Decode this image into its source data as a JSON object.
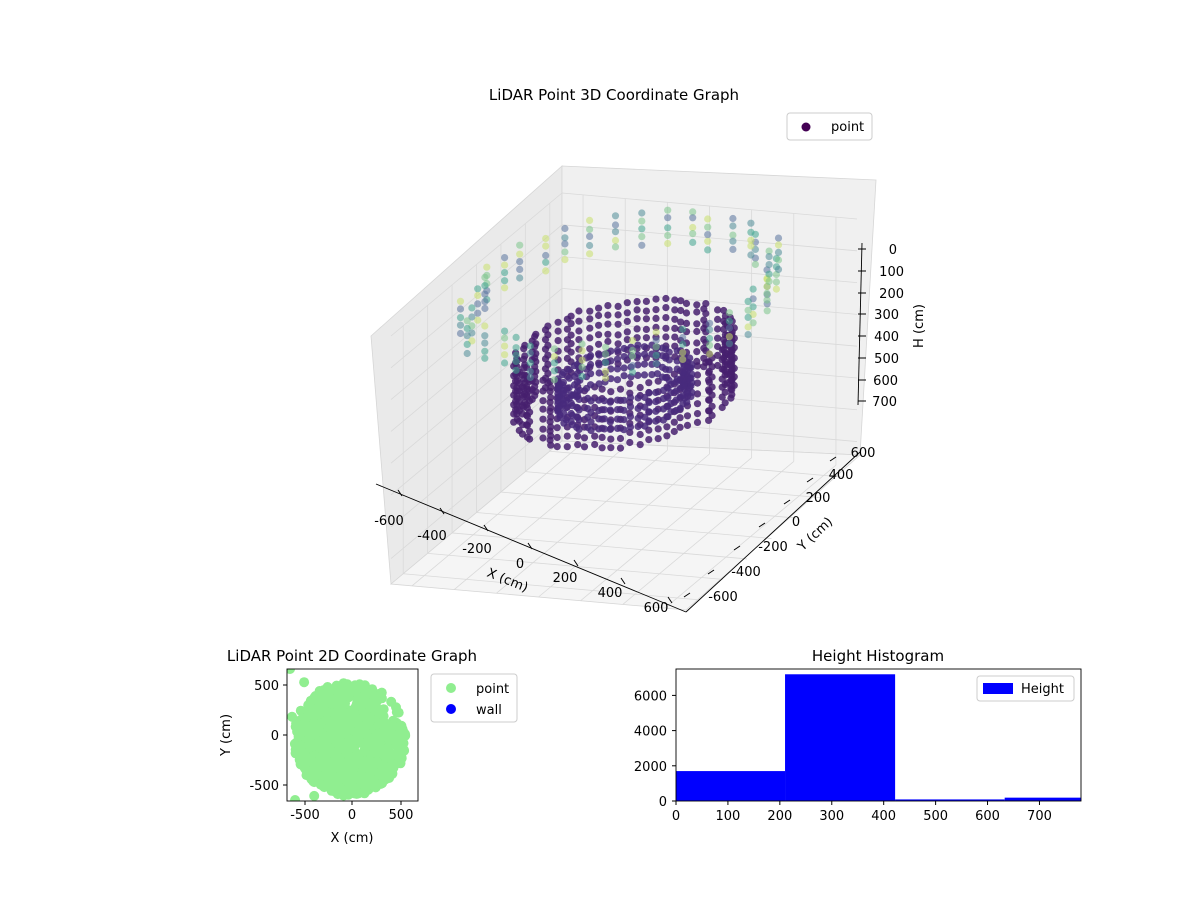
{
  "chart_data": [
    {
      "type": "scatter",
      "projection": "3d",
      "title": "LiDAR Point 3D Coordinate Graph",
      "xlabel": "X (cm)",
      "ylabel": "Y (cm)",
      "zlabel": "H (cm)",
      "x_ticks": [
        "-600",
        "-400",
        "-200",
        "0",
        "200",
        "400",
        "600"
      ],
      "y_ticks": [
        "-600",
        "-400",
        "-200",
        "0",
        "200",
        "400",
        "600"
      ],
      "z_ticks": [
        "0",
        "100",
        "200",
        "300",
        "400",
        "500",
        "600",
        "700"
      ],
      "xlim": [
        -700,
        700
      ],
      "ylim": [
        -700,
        700
      ],
      "zlim": [
        0,
        780
      ],
      "z_axis_inverted": true,
      "colormap": "viridis",
      "legend": {
        "entries": [
          {
            "label": "point",
            "color": "#440154"
          }
        ],
        "placement": "upper-right"
      },
      "grid": true,
      "structures": [
        {
          "name": "ring",
          "radius": 440,
          "h_range": [
            210,
            410
          ],
          "h_step": 30,
          "count": 70,
          "color": "#46206f"
        },
        {
          "name": "inner-disk",
          "radius": 270,
          "h_range": [
            300,
            390
          ],
          "h_step": 30,
          "count": 60,
          "color": "#482a7c"
        },
        {
          "name": "outer-wall",
          "radius": 650,
          "h_range": [
            0,
            120
          ],
          "h_step": 25,
          "count": 38,
          "color": "#58739c"
        }
      ]
    },
    {
      "type": "scatter",
      "title": "LiDAR Point 2D Coordinate Graph",
      "xlabel": "X (cm)",
      "ylabel": "Y (cm)",
      "x_ticks": [
        "-500",
        "0",
        "500"
      ],
      "y_ticks": [
        "500",
        "0",
        "-500"
      ],
      "xlim": [
        -650,
        650
      ],
      "ylim": [
        -650,
        650
      ],
      "legend": {
        "entries": [
          {
            "label": "point",
            "color": "#90ee90"
          },
          {
            "label": "wall",
            "color": "#0000ff"
          }
        ],
        "placement": "outside-right"
      },
      "grid": false
    },
    {
      "type": "bar",
      "title": "Height Histogram",
      "xlabel": "",
      "ylabel": "",
      "x_ticks": [
        "0",
        "100",
        "200",
        "300",
        "400",
        "500",
        "600",
        "700"
      ],
      "y_ticks": [
        "0",
        "2000",
        "4000",
        "6000"
      ],
      "xlim": [
        0,
        780
      ],
      "ylim": [
        0,
        7500
      ],
      "bins": [
        {
          "start": 0,
          "end": 210,
          "value": 1700
        },
        {
          "start": 210,
          "end": 422,
          "value": 7200
        },
        {
          "start": 422,
          "end": 633,
          "value": 90
        },
        {
          "start": 633,
          "end": 780,
          "value": 190
        }
      ],
      "series": [
        {
          "name": "Height",
          "color": "#0000ff"
        }
      ],
      "legend": {
        "entries": [
          {
            "label": "Height",
            "color": "#0000ff"
          }
        ],
        "placement": "upper-right"
      },
      "grid": false
    }
  ]
}
